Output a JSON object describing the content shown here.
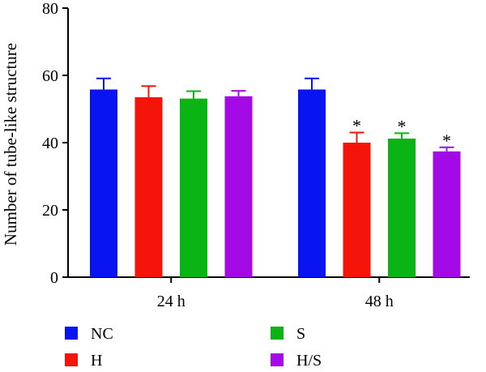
{
  "chart_data": {
    "type": "bar",
    "title": "",
    "xlabel": "",
    "ylabel": "Number of tube-like structure",
    "ylim": [
      0,
      80
    ],
    "yticks": [
      0,
      20,
      40,
      60,
      80
    ],
    "categories": [
      "24 h",
      "48 h"
    ],
    "series": [
      {
        "name": "NC",
        "color": "#0a14f0",
        "values": [
          55.8,
          55.8
        ],
        "errors": [
          3.3,
          3.3
        ],
        "significant": [
          false,
          false
        ]
      },
      {
        "name": "H",
        "color": "#f5140a",
        "values": [
          53.5,
          40.0
        ],
        "errors": [
          3.3,
          3.0
        ],
        "significant": [
          false,
          true
        ]
      },
      {
        "name": "S",
        "color": "#0ab414",
        "values": [
          53.1,
          41.2
        ],
        "errors": [
          2.2,
          1.6
        ],
        "significant": [
          false,
          true
        ]
      },
      {
        "name": "H/S",
        "color": "#a30ae6",
        "values": [
          53.8,
          37.4
        ],
        "errors": [
          1.6,
          1.2
        ],
        "significant": [
          false,
          true
        ]
      }
    ],
    "significance_marker": "*",
    "legend": {
      "position": "bottom",
      "columns": 2
    }
  }
}
